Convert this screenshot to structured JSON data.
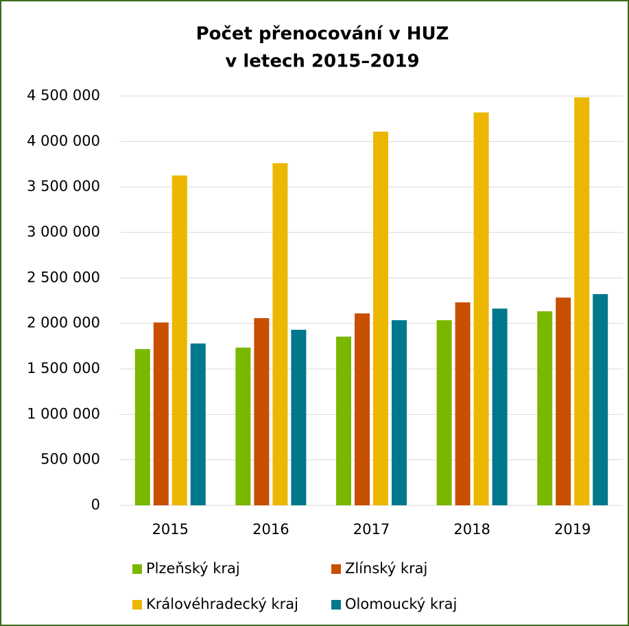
{
  "chart_data": {
    "type": "bar",
    "title": [
      "Počet přenocování v HUZ",
      "v letech 2015–2019"
    ],
    "categories": [
      "2015",
      "2016",
      "2017",
      "2018",
      "2019"
    ],
    "series": [
      {
        "name": "Plzeňský kraj",
        "color": "#7ab800",
        "values": [
          1718000,
          1734000,
          1855000,
          2035000,
          2133000
        ]
      },
      {
        "name": "Zlínský kraj",
        "color": "#c84f00",
        "values": [
          2010000,
          2058000,
          2110000,
          2231000,
          2284000
        ]
      },
      {
        "name": "Královéhradecký kraj",
        "color": "#ecb700",
        "values": [
          3626000,
          3761000,
          4108000,
          4319000,
          4485000
        ]
      },
      {
        "name": "Olomoucký kraj",
        "color": "#00798c",
        "values": [
          1779000,
          1930000,
          2035000,
          2163000,
          2322000
        ]
      }
    ],
    "ylim": [
      0,
      4500000
    ],
    "yticks": [
      0,
      {
        "value": 500000,
        "label": "500 000"
      },
      {
        "value": 1000000,
        "label": "1 000 000"
      },
      {
        "value": 1500000,
        "label": "1 500 000"
      },
      {
        "value": 2000000,
        "label": "2 000 000"
      },
      {
        "value": 2500000,
        "label": "2 500 000"
      },
      {
        "value": 3000000,
        "label": "3 000 000"
      },
      {
        "value": 3500000,
        "label": "3 500 000"
      },
      {
        "value": 4000000,
        "label": "4 000 000"
      },
      {
        "value": 4500000,
        "label": "4 500 000"
      }
    ],
    "grid": true
  }
}
